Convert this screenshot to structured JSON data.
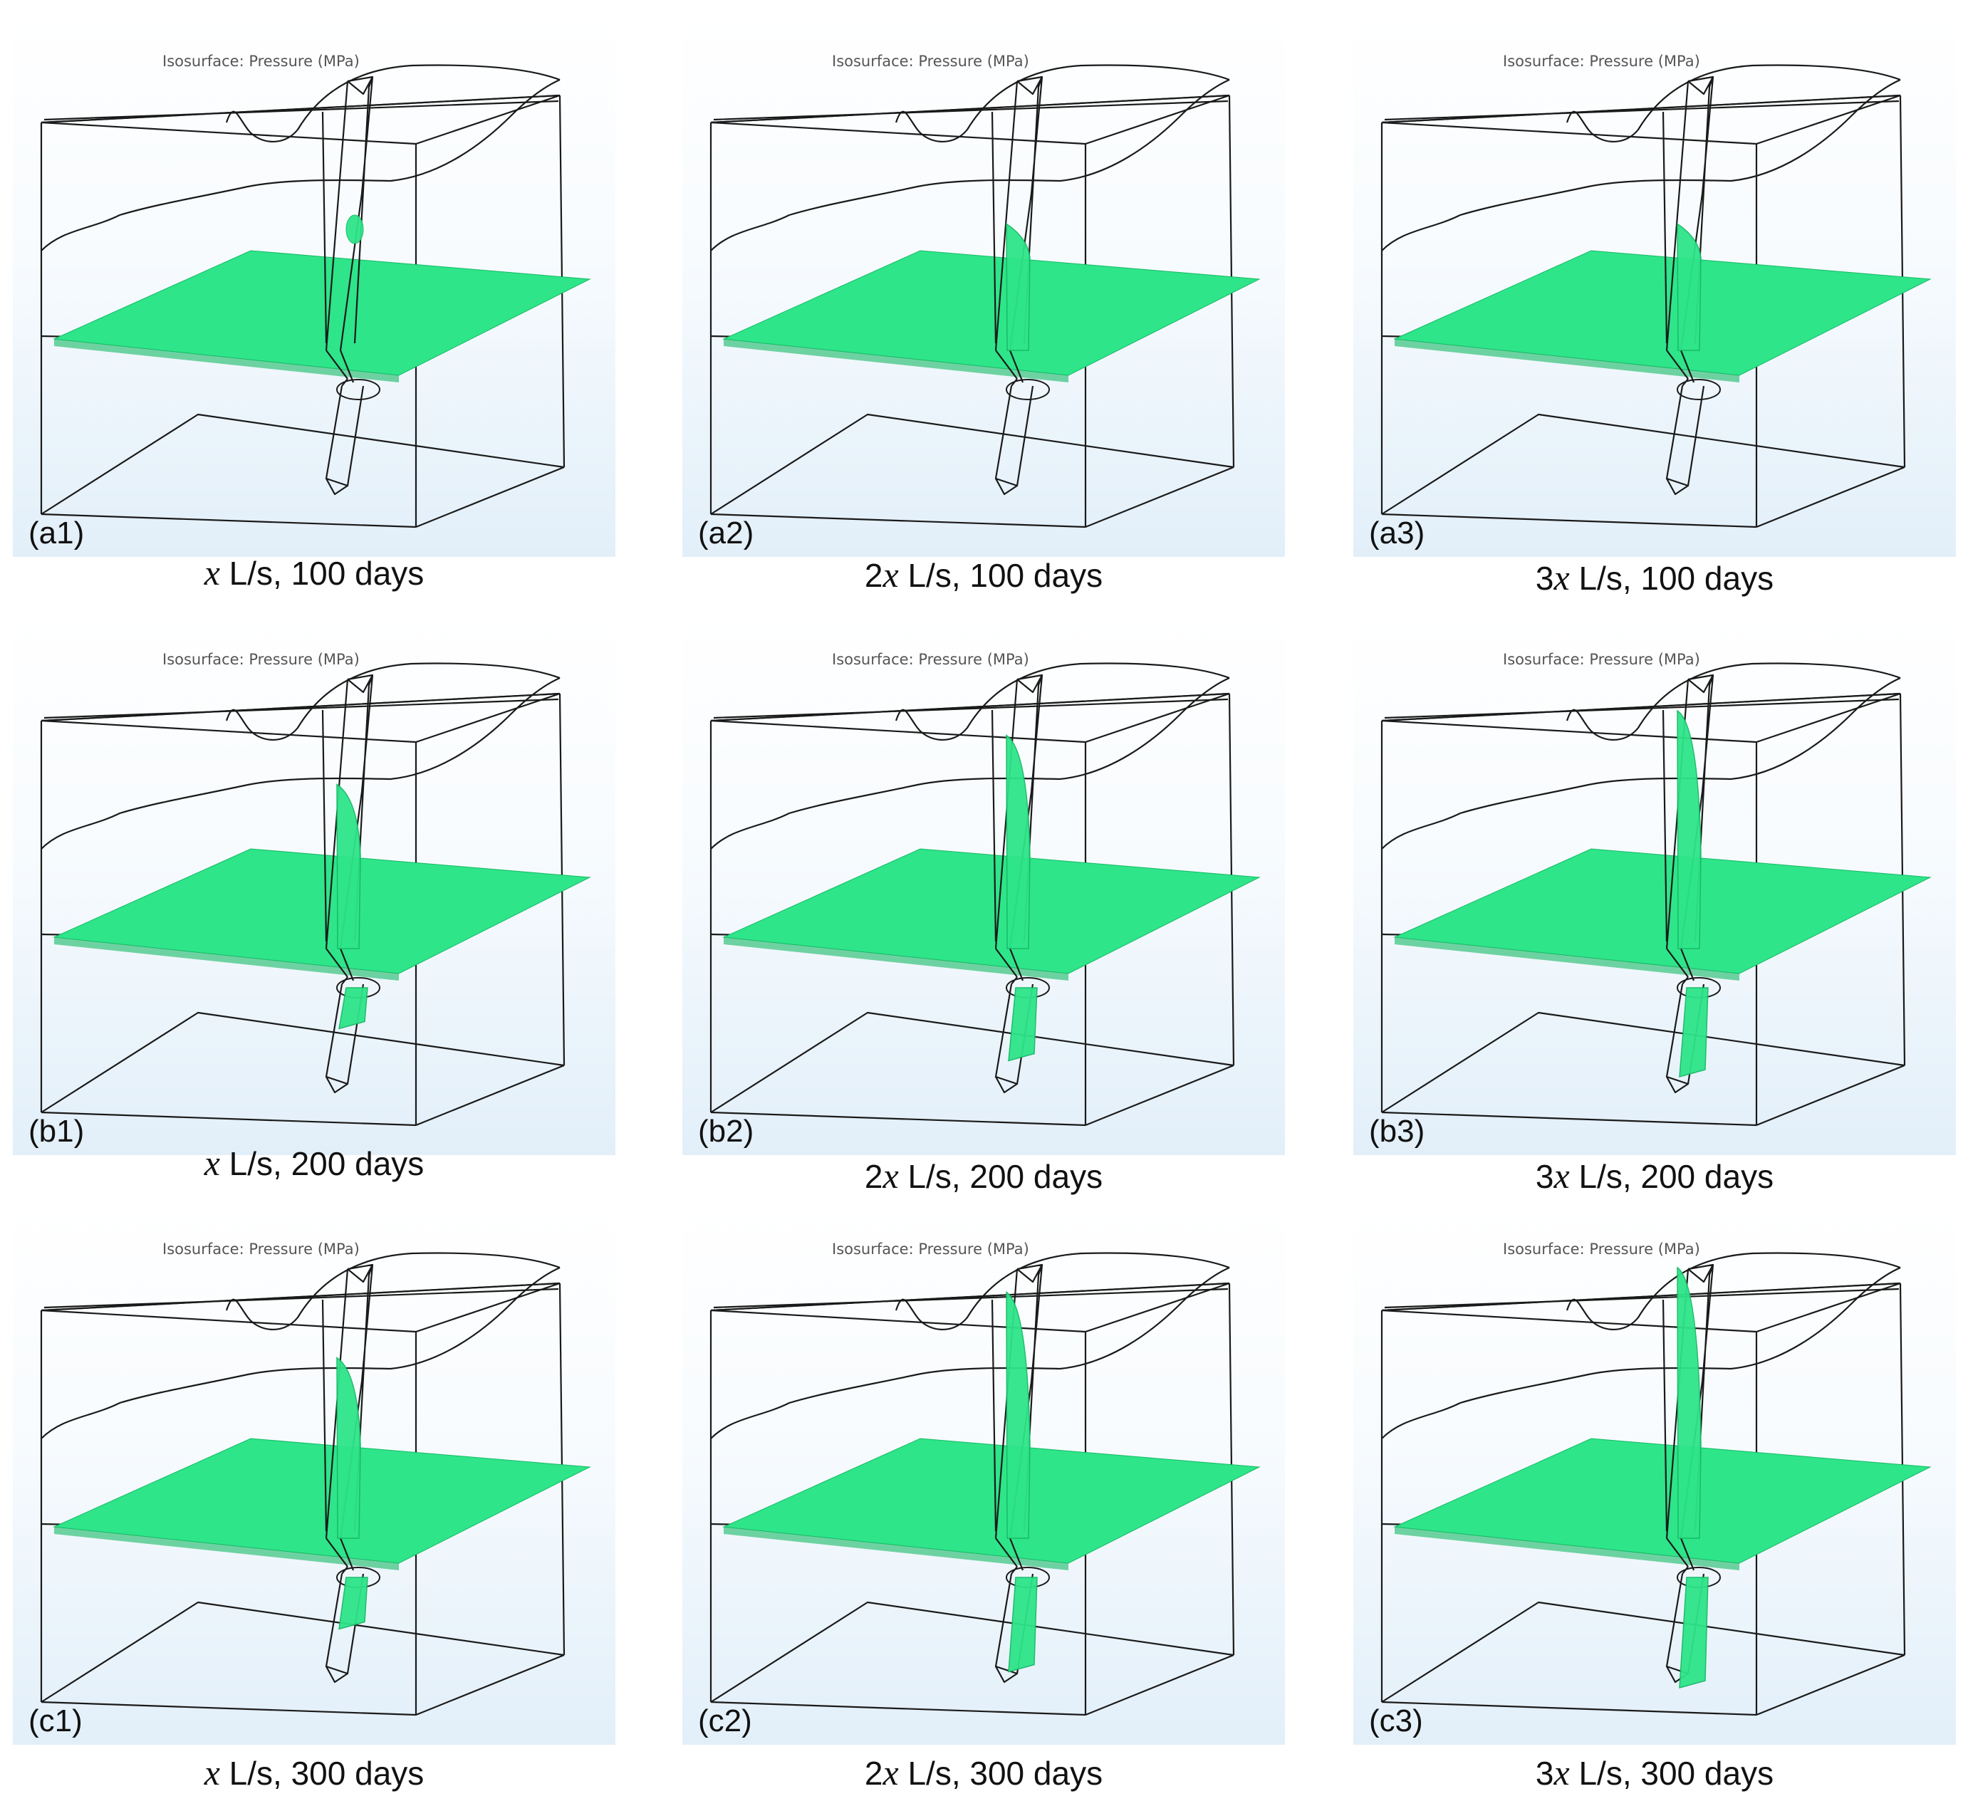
{
  "iso_label": "Isosurface: Pressure (MPa)",
  "panels": [
    {
      "id": "(a1)",
      "rate": "",
      "suffix": " L/s, 100 days",
      "growth": 0.05
    },
    {
      "id": "(a2)",
      "rate": "2",
      "suffix": " L/s, 100 days",
      "growth": 0.12
    },
    {
      "id": "(a3)",
      "rate": "3",
      "suffix": " L/s, 100 days",
      "growth": 0.12
    },
    {
      "id": "(b1)",
      "rate": "",
      "suffix": " L/s, 200 days",
      "growth": 0.35
    },
    {
      "id": "(b2)",
      "rate": "2",
      "suffix": " L/s, 200 days",
      "growth": 0.65
    },
    {
      "id": "(b3)",
      "rate": "3",
      "suffix": " L/s, 200 days",
      "growth": 0.8
    },
    {
      "id": "(c1)",
      "rate": "",
      "suffix": " L/s, 300 days",
      "growth": 0.45
    },
    {
      "id": "(c2)",
      "rate": "2",
      "suffix": " L/s, 300 days",
      "growth": 0.85
    },
    {
      "id": "(c3)",
      "rate": "3",
      "suffix": " L/s, 300 days",
      "growth": 1.0
    }
  ],
  "variable": "x",
  "colors": {
    "isosurface": "#2ee58a",
    "isosurface_dark": "#16b964",
    "wireframe": "#1a1a1a"
  }
}
